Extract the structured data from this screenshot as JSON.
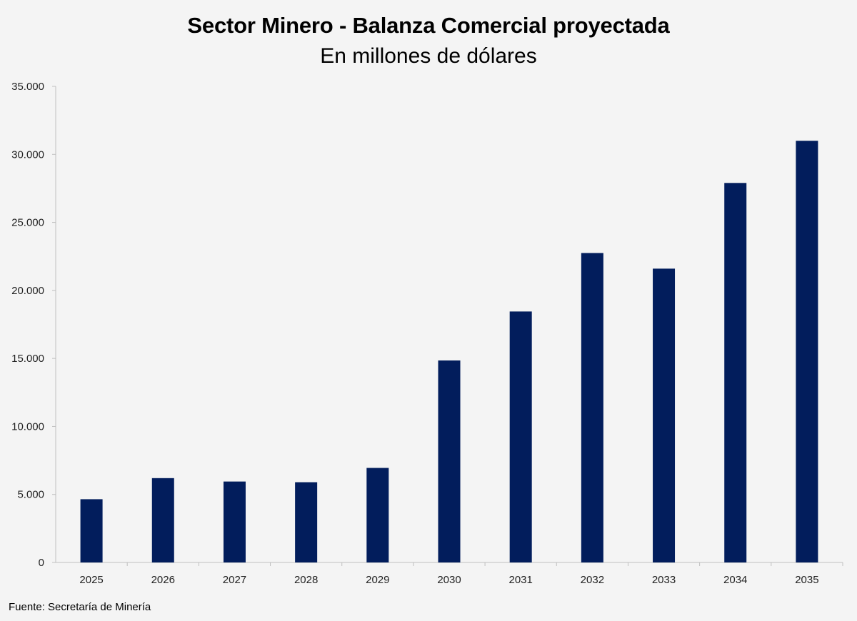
{
  "chart_data": {
    "type": "bar",
    "title": "Sector Minero - Balanza Comercial proyectada",
    "subtitle": "En millones de dólares",
    "categories": [
      "2025",
      "2026",
      "2027",
      "2028",
      "2029",
      "2030",
      "2031",
      "2032",
      "2033",
      "2034",
      "2035"
    ],
    "values": [
      4650,
      6200,
      5950,
      5900,
      6950,
      14850,
      18450,
      22750,
      21600,
      27900,
      31000
    ],
    "ylim": [
      0,
      35000
    ],
    "yticks": [
      0,
      5000,
      10000,
      15000,
      20000,
      25000,
      30000,
      35000
    ],
    "ytick_labels": [
      "0",
      "5.000",
      "10.000",
      "15.000",
      "20.000",
      "25.000",
      "30.000",
      "35.000"
    ],
    "xlabel": "",
    "ylabel": "",
    "grid": false,
    "bar_color": "#021d5c",
    "source": "Fuente: Secretaría de Minería"
  }
}
